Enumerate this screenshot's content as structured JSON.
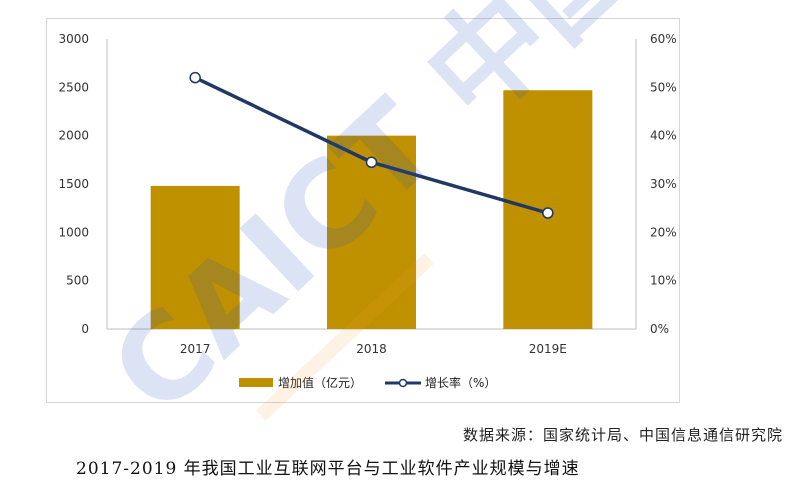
{
  "chart_data": {
    "type": "bar",
    "categories": [
      "2017",
      "2018",
      "2019E"
    ],
    "series": [
      {
        "name": "增加值（亿元）",
        "chart_type": "bar",
        "axis": "left",
        "values": [
          1480,
          2000,
          2470
        ],
        "color": "#bf9000"
      },
      {
        "name": "增长率（%）",
        "chart_type": "line",
        "axis": "right",
        "values": [
          52,
          34.5,
          24
        ],
        "color": "#1f3864"
      }
    ],
    "y_left": {
      "min": 0,
      "max": 3000,
      "ticks": [
        "0",
        "500",
        "1000",
        "1500",
        "2000",
        "2500",
        "3000"
      ]
    },
    "y_right": {
      "min": 0,
      "max": 60,
      "ticks": [
        "0%",
        "10%",
        "20%",
        "30%",
        "40%",
        "50%",
        "60%"
      ]
    },
    "grid": false,
    "legend_position": "bottom"
  },
  "source_note": "数据来源：国家统计局、中国信息通信研究院",
  "caption": "2017-2019 年我国工业互联网平台与工业软件产业规模与增速",
  "watermark": {
    "text": "CAICT 中国信通院",
    "color": "#2b59c3"
  }
}
